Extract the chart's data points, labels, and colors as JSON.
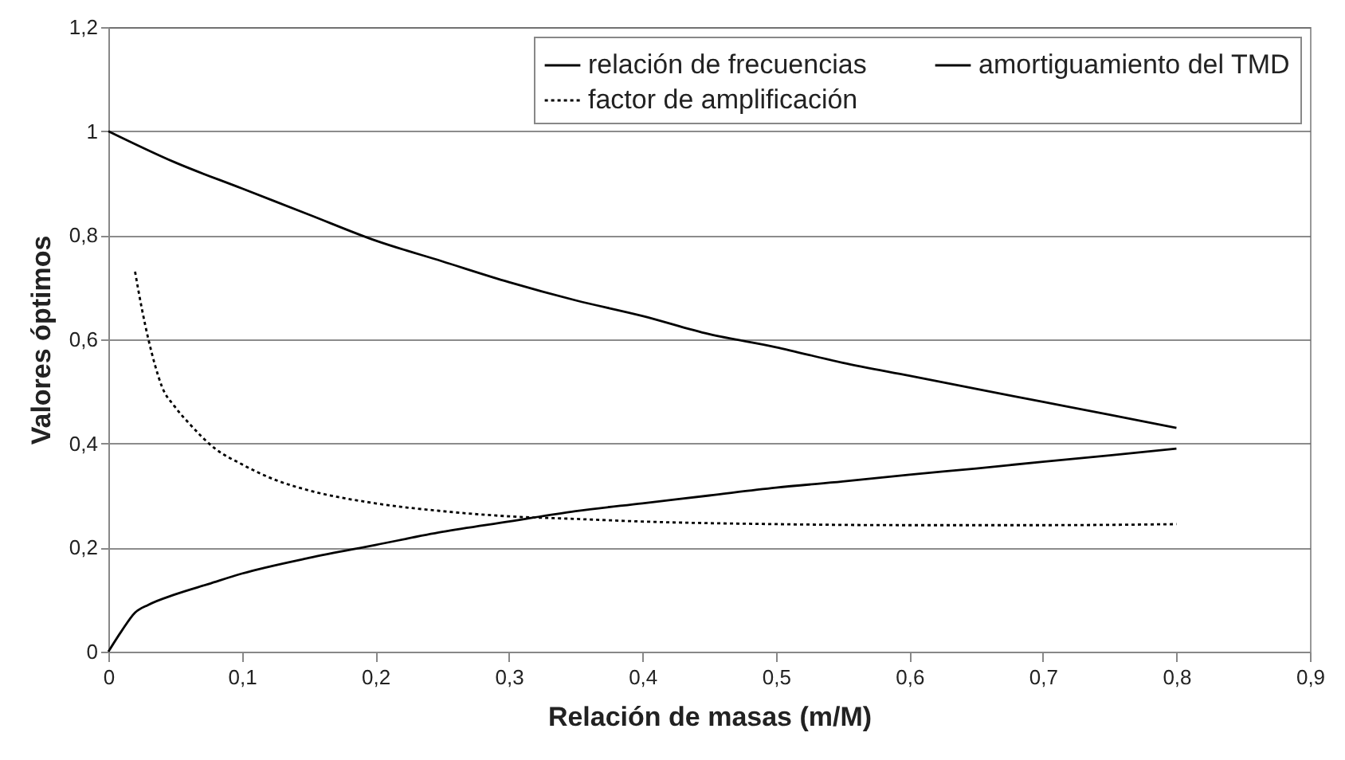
{
  "chart_data": {
    "type": "line",
    "xlabel": "Relación de masas (m/M)",
    "ylabel": "Valores óptimos",
    "xlim": [
      0,
      0.9
    ],
    "xticks": [
      0,
      {
        "value": 0.1,
        "label": "0,1"
      },
      {
        "value": 0.2,
        "label": "0,2"
      },
      {
        "value": 0.3,
        "label": "0,3"
      },
      {
        "value": 0.4,
        "label": "0,4"
      },
      {
        "value": 0.5,
        "label": "0,5"
      },
      {
        "value": 0.6,
        "label": "0,6"
      },
      {
        "value": 0.7,
        "label": "0,7"
      },
      {
        "value": 0.8,
        "label": "0,8"
      },
      {
        "value": 0.9,
        "label": "0,9"
      }
    ],
    "ylim": [
      0,
      1.2
    ],
    "yticks": [
      0,
      {
        "value": 0.2,
        "label": "0,2"
      },
      {
        "value": 0.4,
        "label": "0,4"
      },
      {
        "value": 0.6,
        "label": "0,6"
      },
      {
        "value": 0.8,
        "label": "0,8"
      },
      1,
      {
        "value": 1.2,
        "label": "1,2"
      }
    ],
    "grid": "y",
    "legend": "top right",
    "series": [
      {
        "name": "relación de frecuencias",
        "color": "#000000",
        "line_style": "solid",
        "x": [
          0,
          0.05,
          0.1,
          0.15,
          0.2,
          0.25,
          0.3,
          0.35,
          0.4,
          0.45,
          0.5,
          0.55,
          0.6,
          0.65,
          0.7,
          0.75,
          0.8
        ],
        "values": [
          1,
          0.94,
          0.89,
          0.84,
          0.79,
          0.75,
          0.71,
          0.675,
          0.645,
          0.61,
          0.585,
          0.555,
          0.53,
          0.505,
          0.48,
          0.455,
          0.43
        ]
      },
      {
        "name": "amortiguamiento del TMD",
        "color": "#000000",
        "line_style": "solid",
        "x": [
          0,
          0.01,
          0.02,
          0.03,
          0.05,
          0.075,
          0.1,
          0.15,
          0.2,
          0.25,
          0.3,
          0.35,
          0.4,
          0.45,
          0.5,
          0.55,
          0.6,
          0.65,
          0.7,
          0.75,
          0.8
        ],
        "values": [
          0,
          0.04,
          0.075,
          0.09,
          0.11,
          0.13,
          0.15,
          0.18,
          0.205,
          0.23,
          0.25,
          0.27,
          0.285,
          0.3,
          0.315,
          0.327,
          0.34,
          0.352,
          0.365,
          0.377,
          0.39
        ]
      },
      {
        "name": "factor de amplificación",
        "color": "#000000",
        "line_style": "dotted",
        "x": [
          0.02,
          0.025,
          0.03,
          0.035,
          0.04,
          0.05,
          0.06,
          0.08,
          0.1,
          0.125,
          0.15,
          0.2,
          0.25,
          0.3,
          0.35,
          0.4,
          0.5,
          0.6,
          0.7,
          0.8
        ],
        "values": [
          0.73,
          0.66,
          0.6,
          0.55,
          0.51,
          0.47,
          0.44,
          0.39,
          0.36,
          0.33,
          0.31,
          0.285,
          0.27,
          0.26,
          0.255,
          0.25,
          0.245,
          0.243,
          0.243,
          0.245
        ]
      }
    ]
  }
}
